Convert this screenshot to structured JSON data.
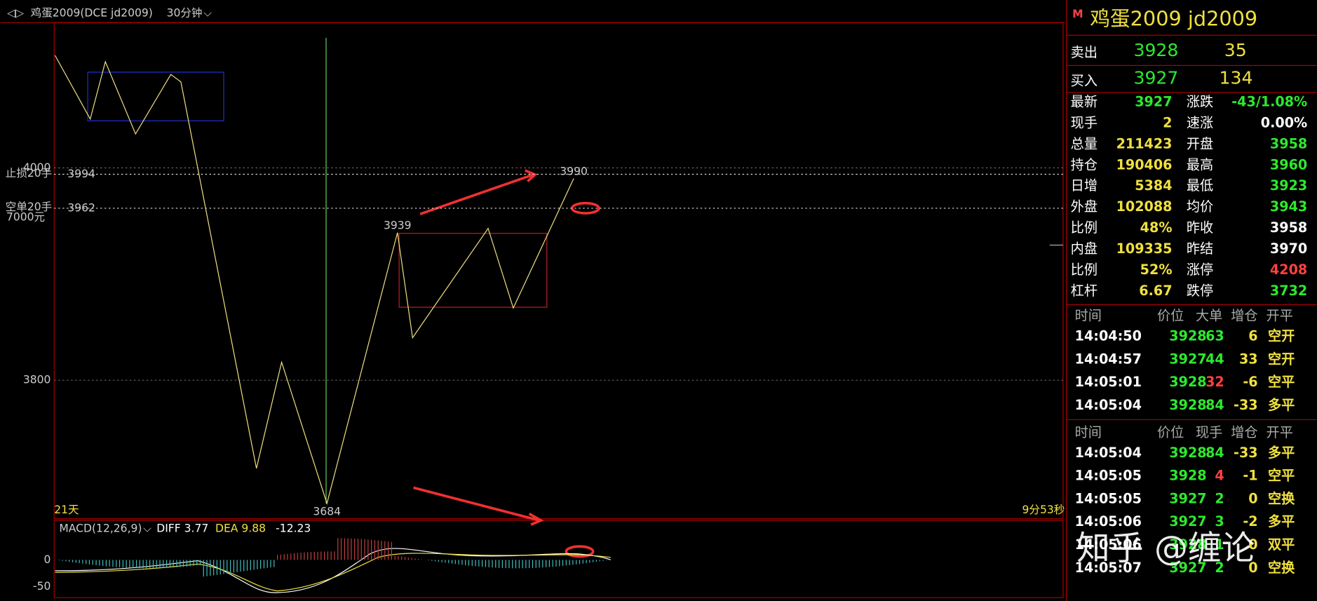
{
  "header": {
    "instrument": "鸡蛋2009(DCE jd2009)",
    "period": "30分钟"
  },
  "price_chart": {
    "yticks": [
      4000,
      3800
    ],
    "levels": [
      {
        "label": "止损20手",
        "value": 3994
      },
      {
        "label": "空单20手",
        "value": 3962
      }
    ],
    "note": "7000元",
    "annotations": [
      {
        "value": 3990,
        "color": "#ff5050"
      },
      {
        "value": 3939,
        "color": "#ff5050"
      },
      {
        "value": 3684,
        "color": "#40d0ff"
      }
    ],
    "zigzag": {
      "x": [
        0,
        7,
        10,
        16,
        23,
        25,
        40,
        45,
        54,
        68,
        71,
        86,
        91,
        103
      ],
      "price": [
        4106,
        4046,
        4100,
        4032,
        4088,
        4081,
        3717,
        3817,
        3684,
        3939,
        3840,
        3943,
        3868,
        3990
      ]
    },
    "days": "21天",
    "countdown": "9分53秒"
  },
  "macd": {
    "title": "MACD(12,26,9)",
    "diff": "DIFF 3.77",
    "dea": "DEA 9.88",
    "value": "-12.23",
    "yticks": [
      0,
      -50
    ]
  },
  "quote": {
    "title": "鸡蛋2009  jd2009",
    "ask": {
      "label": "卖出",
      "price": "3928",
      "volume": "35"
    },
    "bid": {
      "label": "买入",
      "price": "3927",
      "volume": "134"
    },
    "rows": [
      [
        "最新",
        "3927",
        "涨跌",
        "-43/1.08%"
      ],
      [
        "现手",
        "2",
        "速涨",
        "0.00%"
      ],
      [
        "总量",
        "211423",
        "开盘",
        "3958"
      ],
      [
        "持仓",
        "190406",
        "最高",
        "3960"
      ],
      [
        "日增",
        "5384",
        "最低",
        "3923"
      ],
      [
        "外盘",
        "102088",
        "均价",
        "3943"
      ],
      [
        "比例",
        "48%",
        "昨收",
        "3958"
      ],
      [
        "内盘",
        "109335",
        "昨结",
        "3970"
      ],
      [
        "比例",
        "52%",
        "涨停",
        "4208"
      ],
      [
        "杠杆",
        "6.67",
        "跌停",
        "3732"
      ]
    ]
  },
  "trades1": {
    "header": [
      "时间",
      "价位",
      "大单",
      "增仓",
      "开平"
    ],
    "rows": [
      [
        "14:04:50",
        "3928",
        "63",
        "6",
        "空开"
      ],
      [
        "14:04:57",
        "3927",
        "44",
        "33",
        "空开"
      ],
      [
        "14:05:01",
        "3928",
        "32",
        "-6",
        "空平"
      ],
      [
        "14:05:04",
        "3928",
        "84",
        "-33",
        "多平"
      ]
    ]
  },
  "trades2": {
    "header": [
      "时间",
      "价位",
      "现手",
      "增仓",
      "开平"
    ],
    "rows": [
      [
        "14:05:04",
        "3928",
        "84",
        "-33",
        "多平"
      ],
      [
        "14:05:05",
        "3928",
        "4",
        "-1",
        "空平"
      ],
      [
        "14:05:05",
        "3927",
        "2",
        "0",
        "空换"
      ],
      [
        "14:05:06",
        "3927",
        "3",
        "-2",
        "多平"
      ],
      [
        "14:05:06",
        "3928",
        "1",
        "0",
        "双平"
      ],
      [
        "14:05:07",
        "3927",
        "2",
        "0",
        "空换"
      ]
    ]
  },
  "watermark": "知乎 @缠论"
}
